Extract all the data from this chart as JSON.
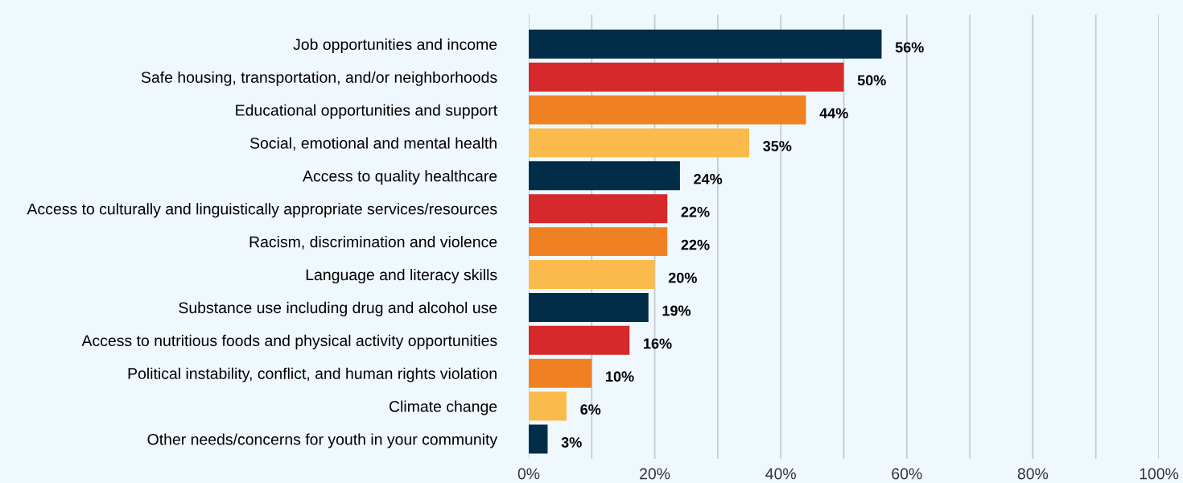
{
  "chart_data": {
    "type": "bar",
    "orientation": "horizontal",
    "categories": [
      "Job opportunities and income",
      "Safe housing, transportation, and/or neighborhoods",
      "Educational opportunities and support",
      "Social, emotional and mental health",
      "Access to quality healthcare",
      "Access to culturally and linguistically appropriate services/resources",
      "Racism, discrimination and violence",
      "Language and literacy skills",
      "Substance use including drug and alcohol use",
      "Access to nutritious foods and physical activity opportunities",
      "Political instability, conflict, and human rights violation",
      "Climate change",
      "Other needs/concerns for youth in your community"
    ],
    "values": [
      56,
      50,
      44,
      35,
      24,
      22,
      22,
      20,
      19,
      16,
      10,
      6,
      3
    ],
    "value_labels": [
      "56%",
      "50%",
      "44%",
      "35%",
      "24%",
      "22%",
      "22%",
      "20%",
      "19%",
      "16%",
      "10%",
      "6%",
      "3%"
    ],
    "colors": [
      "#012d48",
      "#d6292b",
      "#f08123",
      "#fbbb4c",
      "#012d48",
      "#d6292b",
      "#f08123",
      "#fbbb4c",
      "#012d48",
      "#d6292b",
      "#f08123",
      "#fbbb4c",
      "#012d48"
    ],
    "xlim": [
      0,
      100
    ],
    "xticks": [
      {
        "value": 0,
        "label": "0%"
      },
      {
        "value": 10,
        "label": null
      },
      {
        "value": 20,
        "label": "20%"
      },
      {
        "value": 30,
        "label": null
      },
      {
        "value": 40,
        "label": "40%"
      },
      {
        "value": 50,
        "label": null
      },
      {
        "value": 60,
        "label": "60%"
      },
      {
        "value": 70,
        "label": null
      },
      {
        "value": 80,
        "label": "80%"
      },
      {
        "value": 90,
        "label": null
      },
      {
        "value": 100,
        "label": "100%"
      }
    ],
    "grid": "x"
  }
}
